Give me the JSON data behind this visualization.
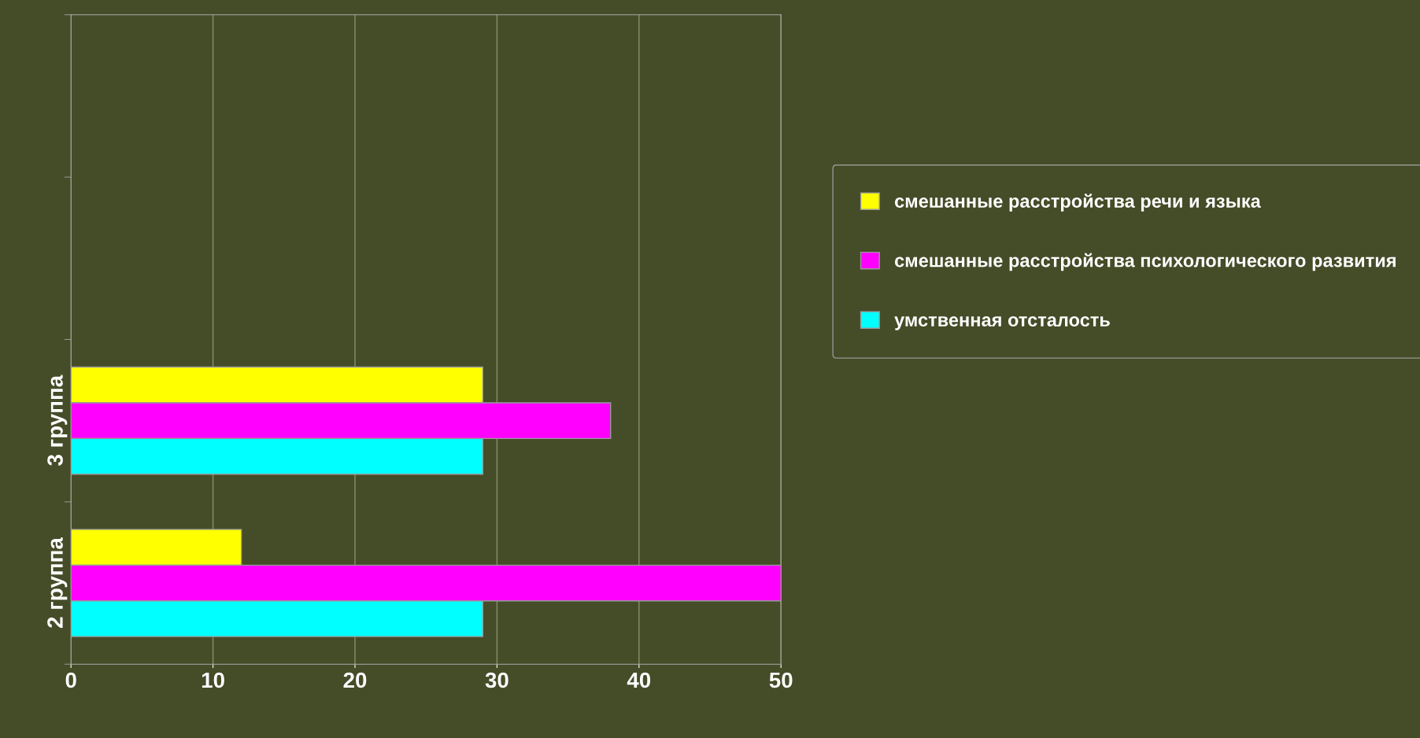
{
  "chart_data": {
    "type": "bar",
    "orientation": "horizontal",
    "categories": [
      null,
      null,
      "3 группа",
      "2 группа"
    ],
    "series": [
      {
        "name": "смешанные расстройства речи и языка",
        "color": "#ffff00",
        "values": [
          null,
          null,
          29,
          12
        ]
      },
      {
        "name": "смешанные расстройства психологического развития",
        "color": "#ff00ff",
        "values": [
          null,
          null,
          38,
          50
        ]
      },
      {
        "name": "умственная отсталость",
        "color": "#00ffff",
        "values": [
          null,
          null,
          29,
          29
        ]
      }
    ],
    "xlim": [
      0,
      50
    ],
    "xticks": [
      0,
      10,
      20,
      30,
      40,
      50
    ],
    "grid": "x",
    "legend": "right"
  }
}
